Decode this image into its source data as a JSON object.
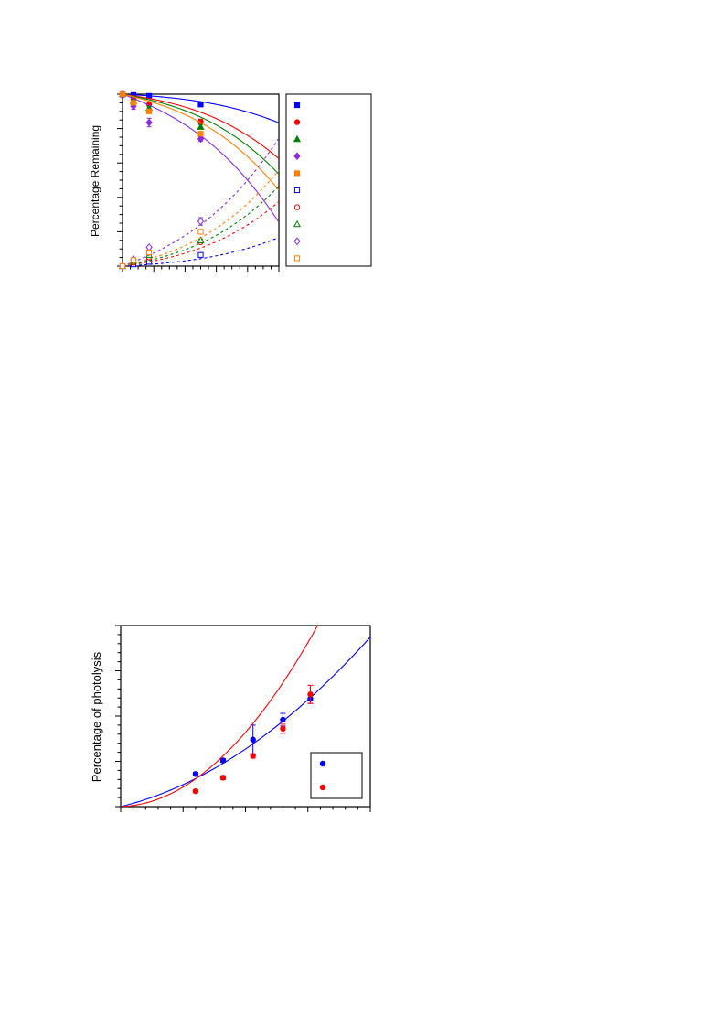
{
  "chart_data": [
    {
      "type": "scatter",
      "title": "",
      "xlabel": "",
      "ylabel": "Percentage Remaining",
      "xlim": [
        0,
        10
      ],
      "ylim": [
        0,
        100
      ],
      "grid": false,
      "legend": "right-outside",
      "legend_entries": 10,
      "series": [
        {
          "color": "#0000ff",
          "marker": "square",
          "filled": true,
          "line": "solid",
          "x": [
            0,
            0.7,
            1.7,
            5.0
          ],
          "y": [
            100,
            99.5,
            99,
            94
          ],
          "err": [
            0,
            0.5,
            0.5,
            1
          ],
          "fit": [
            0,
            0.5,
            3.2,
            8.45
          ]
        },
        {
          "color": "#ff0000",
          "marker": "circle",
          "filled": true,
          "line": "solid",
          "x": [
            0,
            0.7,
            1.7,
            5.0
          ],
          "y": [
            100,
            97,
            94,
            84
          ],
          "err": [
            0,
            0.5,
            0.5,
            1.5
          ],
          "fit": [
            0,
            1.25,
            9.3,
            15.7
          ]
        },
        {
          "color": "#008000",
          "marker": "triangle",
          "filled": true,
          "line": "solid",
          "x": [
            0,
            0.7,
            1.7,
            5.0
          ],
          "y": [
            100,
            96,
            92,
            81
          ],
          "err": [
            0,
            0.5,
            0.8,
            1.3
          ],
          "fit": [
            0,
            1.64,
            11.2,
            18.9
          ]
        },
        {
          "color": "#8a2be2",
          "marker": "diamond",
          "filled": true,
          "line": "solid",
          "x": [
            0,
            0.7,
            1.7,
            5.0
          ],
          "y": [
            100,
            93,
            83.5,
            74
          ],
          "err": [
            2,
            1.8,
            2.5,
            1.3
          ],
          "fit": [
            0,
            3.4,
            16.45,
            24
          ]
        },
        {
          "color": "#ff8000",
          "marker": "square",
          "filled": true,
          "line": "solid",
          "x": [
            0,
            0.7,
            1.7,
            5.0
          ],
          "y": [
            100,
            95,
            90,
            77
          ],
          "err": [
            0,
            0.5,
            0.8,
            1.2
          ],
          "fit": [
            0,
            2.1,
            13.4,
            21.45
          ]
        },
        {
          "color": "#0000ff",
          "marker": "square",
          "filled": false,
          "line": "dashed",
          "x": [
            0,
            0.7,
            1.7,
            5.0
          ],
          "y": [
            0,
            1,
            2.5,
            6.5
          ],
          "err": [
            0,
            0.3,
            0.3,
            0.8
          ],
          "fit": [
            0,
            0.5,
            3.2,
            8.45
          ]
        },
        {
          "color": "#ff0000",
          "marker": "circle",
          "filled": false,
          "line": "dashed",
          "x": [
            0,
            0.7,
            1.7,
            5.0
          ],
          "y": [
            0,
            2,
            5,
            14
          ],
          "err": [
            0,
            0.3,
            0.4,
            0.8
          ],
          "fit": [
            0,
            1.25,
            9.3,
            15.7
          ]
        },
        {
          "color": "#008000",
          "marker": "triangle",
          "filled": false,
          "line": "dashed",
          "x": [
            0,
            0.7,
            1.7,
            5.0
          ],
          "y": [
            0,
            3,
            6.5,
            15
          ],
          "err": [
            0,
            0.3,
            0.5,
            0.8
          ],
          "fit": [
            0,
            1.64,
            11.2,
            18.9
          ]
        },
        {
          "color": "#8a2be2",
          "marker": "diamond",
          "filled": false,
          "line": "dashed",
          "x": [
            0,
            0.7,
            1.7,
            5.0
          ],
          "y": [
            0,
            4,
            11,
            26
          ],
          "err": [
            0,
            0.5,
            0.7,
            2.2
          ],
          "fit": [
            0,
            3.4,
            16.45,
            24
          ]
        },
        {
          "color": "#ff8000",
          "marker": "square",
          "filled": false,
          "line": "dashed",
          "x": [
            0,
            0.7,
            1.7,
            5.0
          ],
          "y": [
            0,
            3.5,
            8,
            20
          ],
          "err": [
            0,
            0.4,
            0.6,
            1.2
          ],
          "fit": [
            0,
            2.1,
            13.4,
            21.45
          ]
        }
      ]
    },
    {
      "type": "scatter",
      "title": "",
      "xlabel": "",
      "ylabel": "Percentage of photolysis",
      "xlim": [
        0,
        10
      ],
      "ylim": [
        0,
        100
      ],
      "grid": false,
      "legend": "bottom-right",
      "legend_entries": 2,
      "series": [
        {
          "color": "#0000ff",
          "marker": "circle",
          "filled": true,
          "line": "solid",
          "x": [
            3,
            4.1,
            5.3,
            6.5,
            7.6
          ],
          "y": [
            18,
            25.5,
            37,
            48,
            59.5
          ],
          "err": [
            1,
            1,
            8,
            3.5,
            2.5
          ],
          "fit": [
            0,
            3.36,
            0.6
          ]
        },
        {
          "color": "#ff0000",
          "marker": "circle",
          "filled": true,
          "line": "solid",
          "x": [
            3,
            4.1,
            5.3,
            6.5,
            7.6
          ],
          "y": [
            8.5,
            16,
            28,
            43,
            62
          ],
          "err": [
            0.8,
            1,
            1.2,
            2.5,
            5
          ],
          "fit": [
            0,
            0.45,
            1.55
          ]
        }
      ]
    }
  ]
}
